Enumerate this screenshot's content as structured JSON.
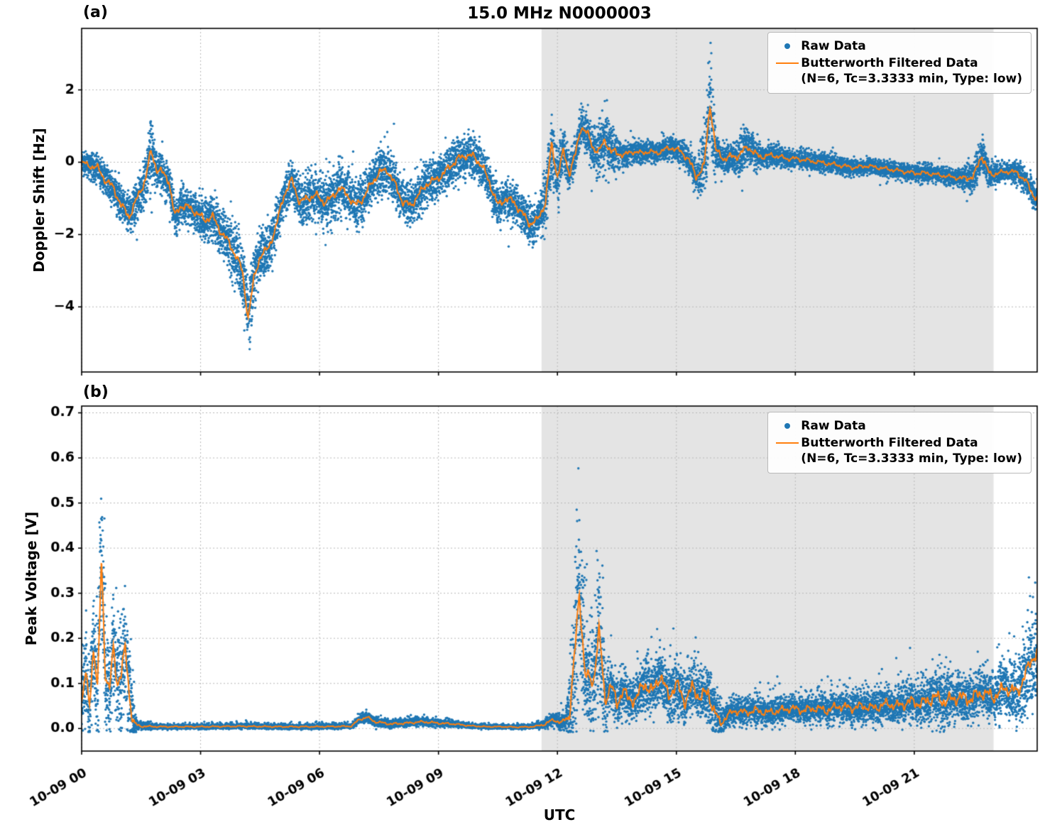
{
  "figure": {
    "title": "15.0 MHz N0000003",
    "xlabel": "UTC"
  },
  "legend": {
    "raw_label": "Raw Data",
    "filtered_label_line1": "Butterworth Filtered Data",
    "filtered_label_line2": "(N=6, Tc=3.3333 min, Type: low)"
  },
  "colors": {
    "raw": "#1f77b4",
    "filtered": "#ff7f0e",
    "shade": "#e4e4e4",
    "grid": "#b8b8b8",
    "axis": "#000000"
  },
  "chart_data": [
    {
      "type": "scatter",
      "panel_label": "(a)",
      "ylabel": "Doppler Shift [Hz]",
      "xlim": [
        0,
        24.1
      ],
      "ylim": [
        -5.8,
        3.7
      ],
      "xticks": [
        0,
        3,
        6,
        9,
        12,
        15,
        18,
        21
      ],
      "xtick_labels": [
        "10-09 00",
        "10-09 03",
        "10-09 06",
        "10-09 09",
        "10-09 12",
        "10-09 15",
        "10-09 18",
        "10-09 21"
      ],
      "show_xtick_labels": false,
      "yticks": [
        -4,
        -2,
        0,
        2
      ],
      "ytick_labels": [
        "−4",
        "−2",
        "0",
        "2"
      ],
      "shaded_region": [
        11.6,
        23.0
      ],
      "grid": true,
      "legend_position": "upper right",
      "seed": 42,
      "n_points": 13000,
      "series_names": [
        "Raw Data",
        "Butterworth Filtered Data (N=6, Tc=3.3333 min, Type: low)"
      ],
      "filtered": {
        "t": [
          0,
          0.2,
          0.4,
          0.6,
          0.8,
          1.0,
          1.2,
          1.4,
          1.6,
          1.75,
          1.9,
          2.0,
          2.2,
          2.35,
          2.5,
          2.7,
          2.9,
          3.1,
          3.3,
          3.5,
          3.7,
          3.9,
          4.05,
          4.2,
          4.35,
          4.5,
          4.7,
          4.9,
          5.1,
          5.3,
          5.5,
          5.7,
          5.9,
          6.1,
          6.3,
          6.5,
          6.7,
          6.9,
          7.1,
          7.3,
          7.5,
          7.7,
          7.9,
          8.1,
          8.3,
          8.5,
          8.7,
          8.9,
          9.1,
          9.3,
          9.5,
          9.7,
          9.9,
          10.1,
          10.3,
          10.5,
          10.7,
          10.9,
          11.1,
          11.3,
          11.5,
          11.7,
          11.85,
          12.0,
          12.15,
          12.3,
          12.45,
          12.6,
          12.75,
          12.9,
          13.05,
          13.2,
          13.35,
          13.5,
          13.7,
          13.9,
          14.1,
          14.3,
          14.5,
          14.7,
          14.9,
          15.1,
          15.3,
          15.5,
          15.7,
          15.85,
          16.0,
          16.2,
          16.4,
          16.6,
          16.8,
          17.0,
          17.2,
          17.4,
          17.6,
          17.8,
          18.0,
          18.3,
          18.6,
          18.9,
          19.2,
          19.5,
          19.8,
          20.1,
          20.4,
          20.7,
          21.0,
          21.3,
          21.6,
          21.9,
          22.2,
          22.5,
          22.7,
          22.9,
          23.1,
          23.4,
          23.6,
          23.8,
          24.0,
          24.1
        ],
        "y": [
          0,
          -0.1,
          -0.15,
          -0.5,
          -0.7,
          -1.2,
          -1.5,
          -1.0,
          -0.5,
          0.3,
          -0.2,
          -0.25,
          -0.5,
          -1.5,
          -1.2,
          -1.25,
          -1.4,
          -1.6,
          -1.5,
          -1.9,
          -2.2,
          -2.6,
          -3.0,
          -4.3,
          -3.2,
          -2.6,
          -2.4,
          -1.8,
          -0.9,
          -0.5,
          -1.1,
          -1.0,
          -0.9,
          -1.1,
          -1.0,
          -0.7,
          -0.9,
          -1.2,
          -1.0,
          -0.6,
          -0.3,
          -0.2,
          -0.6,
          -1.1,
          -1.2,
          -0.9,
          -0.6,
          -0.5,
          -0.35,
          -0.1,
          0.1,
          0.2,
          0.15,
          -0.1,
          -0.6,
          -1.2,
          -1.0,
          -1.1,
          -1.4,
          -1.7,
          -1.6,
          -1.1,
          0.5,
          -0.4,
          0.3,
          -0.3,
          0.2,
          1.0,
          0.8,
          0.4,
          0.3,
          0.6,
          0.3,
          0.25,
          0.2,
          0.3,
          0.25,
          0.3,
          0.25,
          0.35,
          0.4,
          0.3,
          0.1,
          -0.4,
          -0.1,
          1.6,
          0.3,
          0.1,
          0.15,
          0.2,
          0.45,
          0.2,
          0.15,
          0.2,
          0.15,
          0.1,
          0.1,
          0.05,
          0.0,
          -0.05,
          -0.1,
          -0.15,
          -0.1,
          -0.15,
          -0.2,
          -0.25,
          -0.3,
          -0.3,
          -0.35,
          -0.4,
          -0.45,
          -0.4,
          0.2,
          -0.35,
          -0.3,
          -0.25,
          -0.3,
          -0.5,
          -0.9,
          -1.0
        ]
      },
      "raw_band": {
        "t": [
          0,
          1.0,
          1.6,
          1.75,
          1.9,
          2.5,
          3.0,
          4.2,
          5.0,
          6.0,
          7.0,
          8.0,
          9.0,
          10.0,
          11.0,
          11.5,
          11.85,
          12.2,
          12.6,
          13.2,
          13.6,
          14.0,
          15.0,
          15.5,
          15.85,
          16.1,
          16.8,
          17.2,
          18.0,
          19.0,
          20.0,
          21.0,
          22.0,
          22.7,
          23.2,
          23.8,
          24.1
        ],
        "h": [
          0.3,
          0.5,
          0.6,
          1.2,
          0.5,
          0.5,
          0.55,
          0.9,
          0.6,
          0.7,
          0.7,
          0.6,
          0.6,
          0.55,
          0.5,
          0.6,
          1.0,
          0.5,
          0.5,
          0.9,
          0.35,
          0.3,
          0.3,
          0.45,
          1.4,
          0.35,
          0.6,
          0.3,
          0.25,
          0.25,
          0.22,
          0.25,
          0.22,
          0.5,
          0.25,
          0.35,
          0.4
        ]
      }
    },
    {
      "type": "scatter",
      "panel_label": "(b)",
      "ylabel": "Peak Voltage [V]",
      "xlim": [
        0,
        24.1
      ],
      "ylim": [
        -0.05,
        0.715
      ],
      "xticks": [
        0,
        3,
        6,
        9,
        12,
        15,
        18,
        21
      ],
      "xtick_labels": [
        "10-09 00",
        "10-09 03",
        "10-09 06",
        "10-09 09",
        "10-09 12",
        "10-09 15",
        "10-09 18",
        "10-09 21"
      ],
      "show_xtick_labels": true,
      "yticks": [
        0,
        0.1,
        0.2,
        0.3,
        0.4,
        0.5,
        0.6,
        0.7
      ],
      "ytick_labels": [
        "0.0",
        "0.1",
        "0.2",
        "0.3",
        "0.4",
        "0.5",
        "0.6",
        "0.7"
      ],
      "shaded_region": [
        11.6,
        23.0
      ],
      "grid": true,
      "legend_position": "upper right",
      "seed": 7,
      "n_points": 13000,
      "series_names": [
        "Raw Data",
        "Butterworth Filtered Data (N=6, Tc=3.3333 min, Type: low)"
      ],
      "filtered": {
        "t": [
          0,
          0.1,
          0.2,
          0.3,
          0.4,
          0.5,
          0.6,
          0.7,
          0.8,
          0.9,
          1.0,
          1.1,
          1.2,
          1.3,
          1.5,
          2.0,
          3.0,
          4.0,
          5.0,
          6.0,
          6.8,
          7.0,
          7.2,
          7.4,
          7.8,
          8.2,
          8.6,
          9.0,
          9.4,
          9.8,
          10.2,
          10.6,
          11.0,
          11.4,
          11.7,
          11.9,
          12.1,
          12.3,
          12.45,
          12.55,
          12.7,
          12.9,
          13.05,
          13.2,
          13.35,
          13.5,
          13.65,
          13.8,
          14.0,
          14.2,
          14.4,
          14.6,
          14.8,
          15.0,
          15.2,
          15.4,
          15.6,
          15.8,
          15.95,
          16.1,
          16.3,
          16.5,
          16.7,
          17.0,
          17.3,
          17.6,
          17.9,
          18.2,
          18.5,
          18.8,
          19.1,
          19.4,
          19.7,
          20.0,
          20.3,
          20.6,
          20.9,
          21.2,
          21.5,
          21.8,
          22.1,
          22.4,
          22.7,
          23.0,
          23.3,
          23.6,
          23.8,
          24.0,
          24.1
        ],
        "y": [
          0.05,
          0.12,
          0.06,
          0.18,
          0.08,
          0.38,
          0.12,
          0.08,
          0.18,
          0.1,
          0.12,
          0.18,
          0.08,
          0.01,
          0.005,
          0.004,
          0.004,
          0.005,
          0.004,
          0.004,
          0.005,
          0.02,
          0.025,
          0.015,
          0.01,
          0.012,
          0.015,
          0.012,
          0.01,
          0.006,
          0.004,
          0.004,
          0.003,
          0.004,
          0.01,
          0.02,
          0.012,
          0.03,
          0.18,
          0.3,
          0.12,
          0.1,
          0.22,
          0.06,
          0.1,
          0.05,
          0.09,
          0.06,
          0.07,
          0.1,
          0.08,
          0.12,
          0.07,
          0.1,
          0.06,
          0.09,
          0.07,
          0.08,
          0.04,
          0.01,
          0.03,
          0.04,
          0.035,
          0.04,
          0.035,
          0.04,
          0.045,
          0.04,
          0.045,
          0.04,
          0.05,
          0.045,
          0.05,
          0.045,
          0.055,
          0.05,
          0.06,
          0.055,
          0.07,
          0.06,
          0.07,
          0.065,
          0.08,
          0.07,
          0.09,
          0.08,
          0.12,
          0.16,
          0.17
        ]
      },
      "raw_band": {
        "t": [
          0,
          0.3,
          0.5,
          0.7,
          1.0,
          1.25,
          1.4,
          2.0,
          6.8,
          7.1,
          8.0,
          9.0,
          10.0,
          11.4,
          11.8,
          12.2,
          12.5,
          12.8,
          13.05,
          13.3,
          13.6,
          14.0,
          14.5,
          15.0,
          15.5,
          15.9,
          16.2,
          16.6,
          17.0,
          18.0,
          19.0,
          20.0,
          21.0,
          21.5,
          22.0,
          22.5,
          23.0,
          23.4,
          23.8,
          24.1
        ],
        "h": [
          0.1,
          0.12,
          0.2,
          0.12,
          0.15,
          0.1,
          0.01,
          0.006,
          0.006,
          0.012,
          0.01,
          0.01,
          0.005,
          0.005,
          0.015,
          0.02,
          0.25,
          0.1,
          0.2,
          0.06,
          0.06,
          0.06,
          0.07,
          0.07,
          0.06,
          0.07,
          0.03,
          0.035,
          0.035,
          0.035,
          0.04,
          0.04,
          0.05,
          0.07,
          0.06,
          0.06,
          0.06,
          0.08,
          0.12,
          0.12
        ]
      }
    }
  ]
}
